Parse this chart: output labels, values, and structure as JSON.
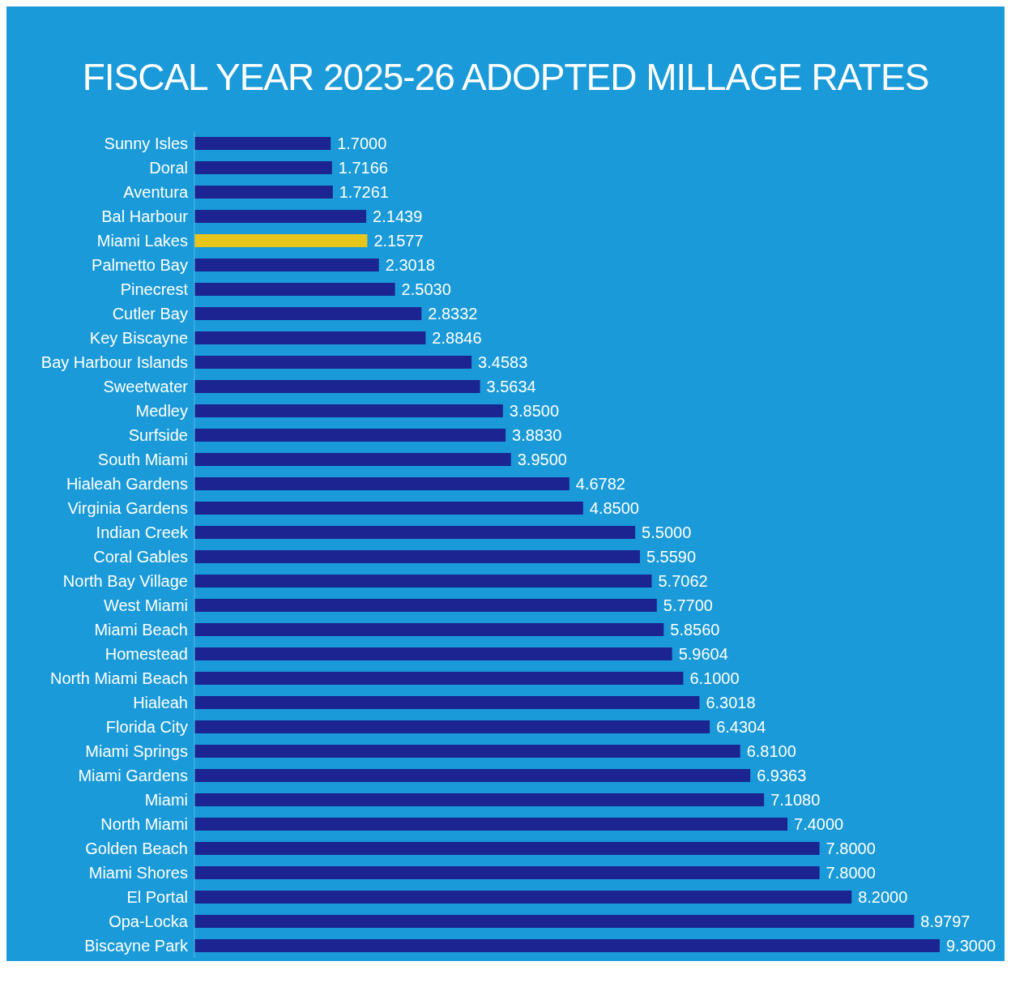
{
  "chart_data": {
    "type": "bar",
    "orientation": "horizontal",
    "title": "FISCAL YEAR 2025-26 ADOPTED MILLAGE RATES",
    "categories": [
      "Sunny Isles",
      "Doral",
      "Aventura",
      "Bal Harbour",
      "Miami Lakes",
      "Palmetto Bay",
      "Pinecrest",
      "Cutler Bay",
      "Key Biscayne",
      "Bay Harbour Islands",
      "Sweetwater",
      "Medley",
      "Surfside",
      "South Miami",
      "Hialeah Gardens",
      "Virginia Gardens",
      "Indian Creek",
      "Coral Gables",
      "North Bay Village",
      "West Miami",
      "Miami Beach",
      "Homestead",
      "North Miami Beach",
      "Hialeah",
      "Florida City",
      "Miami Springs",
      "Miami Gardens",
      "Miami",
      "North Miami",
      "Golden Beach",
      "Miami Shores",
      "El Portal",
      "Opa-Locka",
      "Biscayne Park"
    ],
    "values": [
      1.7,
      1.7166,
      1.7261,
      2.1439,
      2.1577,
      2.3018,
      2.503,
      2.8332,
      2.8846,
      3.4583,
      3.5634,
      3.85,
      3.883,
      3.95,
      4.6782,
      4.85,
      5.5,
      5.559,
      5.7062,
      5.77,
      5.856,
      5.9604,
      6.1,
      6.3018,
      6.4304,
      6.81,
      6.9363,
      7.108,
      7.4,
      7.8,
      7.8,
      8.2,
      8.9797,
      9.3
    ],
    "value_labels": [
      "1.7000",
      "1.7166",
      "1.7261",
      "2.1439",
      "2.1577",
      "2.3018",
      "2.5030",
      "2.8332",
      "2.8846",
      "3.4583",
      "3.5634",
      "3.8500",
      "3.8830",
      "3.9500",
      "4.6782",
      "4.8500",
      "5.5000",
      "5.5590",
      "5.7062",
      "5.7700",
      "5.8560",
      "5.9604",
      "6.1000",
      "6.3018",
      "6.4304",
      "6.8100",
      "6.9363",
      "7.1080",
      "7.4000",
      "7.8000",
      "7.8000",
      "8.2000",
      "8.9797",
      "9.3000"
    ],
    "colors": [
      "#1b2490",
      "#1b2490",
      "#1b2490",
      "#1b2490",
      "#e6c51c",
      "#1b2490",
      "#1b2490",
      "#1b2490",
      "#1b2490",
      "#1b2490",
      "#1b2490",
      "#1b2490",
      "#1b2490",
      "#1b2490",
      "#1b2490",
      "#1b2490",
      "#1b2490",
      "#1b2490",
      "#1b2490",
      "#1b2490",
      "#1b2490",
      "#1b2490",
      "#1b2490",
      "#1b2490",
      "#1b2490",
      "#1b2490",
      "#1b2490",
      "#1b2490",
      "#1b2490",
      "#1b2490",
      "#1b2490",
      "#1b2490",
      "#1b2490",
      "#1b2490"
    ],
    "grid": false,
    "legend": false
  }
}
